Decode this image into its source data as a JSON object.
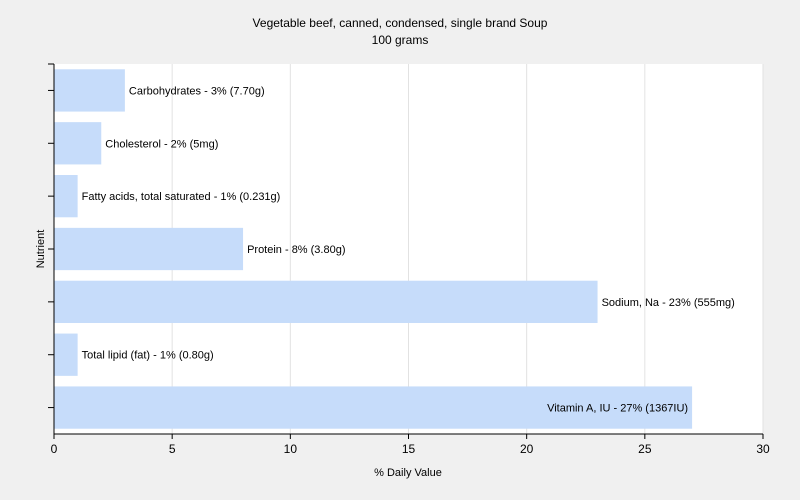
{
  "chart_data": {
    "type": "bar",
    "orientation": "horizontal",
    "title": "Vegetable beef, canned, condensed, single brand Soup",
    "subtitle": "100 grams",
    "xlabel": "% Daily Value",
    "ylabel": "Nutrient",
    "xlim": [
      0,
      30
    ],
    "xticks": [
      "0",
      "5",
      "10",
      "15",
      "20",
      "25",
      "30"
    ],
    "grid": true,
    "bar_color": "#c6dcfa",
    "categories": [
      "Carbohydrates",
      "Cholesterol",
      "Fatty acids, total saturated",
      "Protein",
      "Sodium, Na",
      "Total lipid (fat)",
      "Vitamin A, IU"
    ],
    "values": [
      3,
      2,
      1,
      8,
      23,
      1,
      27
    ],
    "labels": [
      "Carbohydrates - 3% (7.70g)",
      "Cholesterol - 2% (5mg)",
      "Fatty acids, total saturated - 1% (0.231g)",
      "Protein - 8% (3.80g)",
      "Sodium, Na - 23% (555mg)",
      "Total lipid (fat) - 1% (0.80g)",
      "Vitamin A, IU - 27% (1367IU)"
    ]
  }
}
